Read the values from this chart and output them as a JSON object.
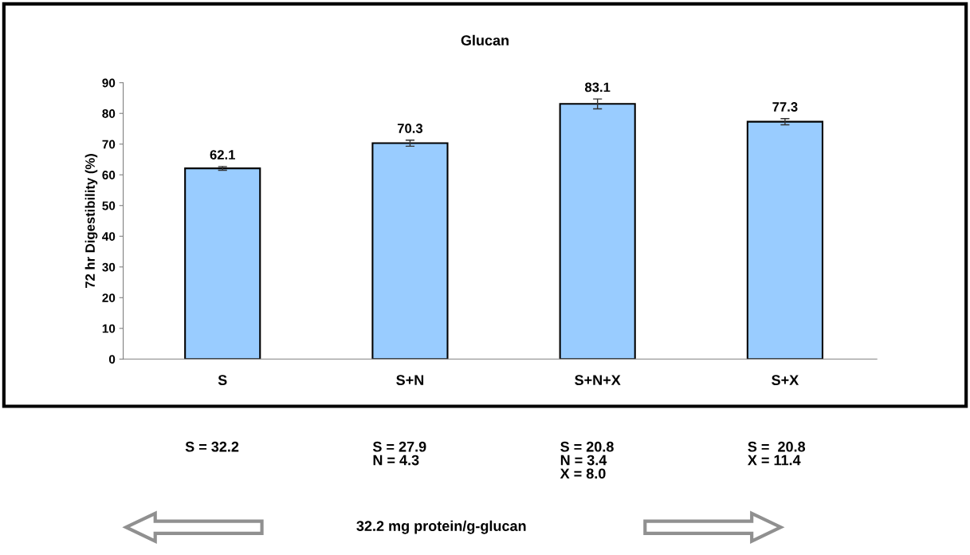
{
  "chart_data": {
    "type": "bar",
    "title": "Glucan",
    "ylabel": "72 hr Digestibility (%)",
    "categories": [
      "S",
      "S+N",
      "S+N+X",
      "S+X"
    ],
    "values": [
      62.1,
      70.3,
      83.1,
      77.3
    ],
    "errors": [
      0.6,
      1.0,
      1.6,
      1.0
    ],
    "color": "#99ccff",
    "data_labels": true,
    "ylim": [
      0,
      90
    ],
    "yticks": [
      0,
      10,
      20,
      30,
      40,
      50,
      60,
      70,
      80,
      90
    ],
    "grid": false,
    "legend": false,
    "annotations": [
      "S = 32.2",
      "S = 27.9\nN = 4.3",
      "S = 20.8\nN = 3.4\nX = 8.0",
      "S =  20.8\nX = 11.4",
      "32.2 mg protein/g-glucan"
    ]
  }
}
